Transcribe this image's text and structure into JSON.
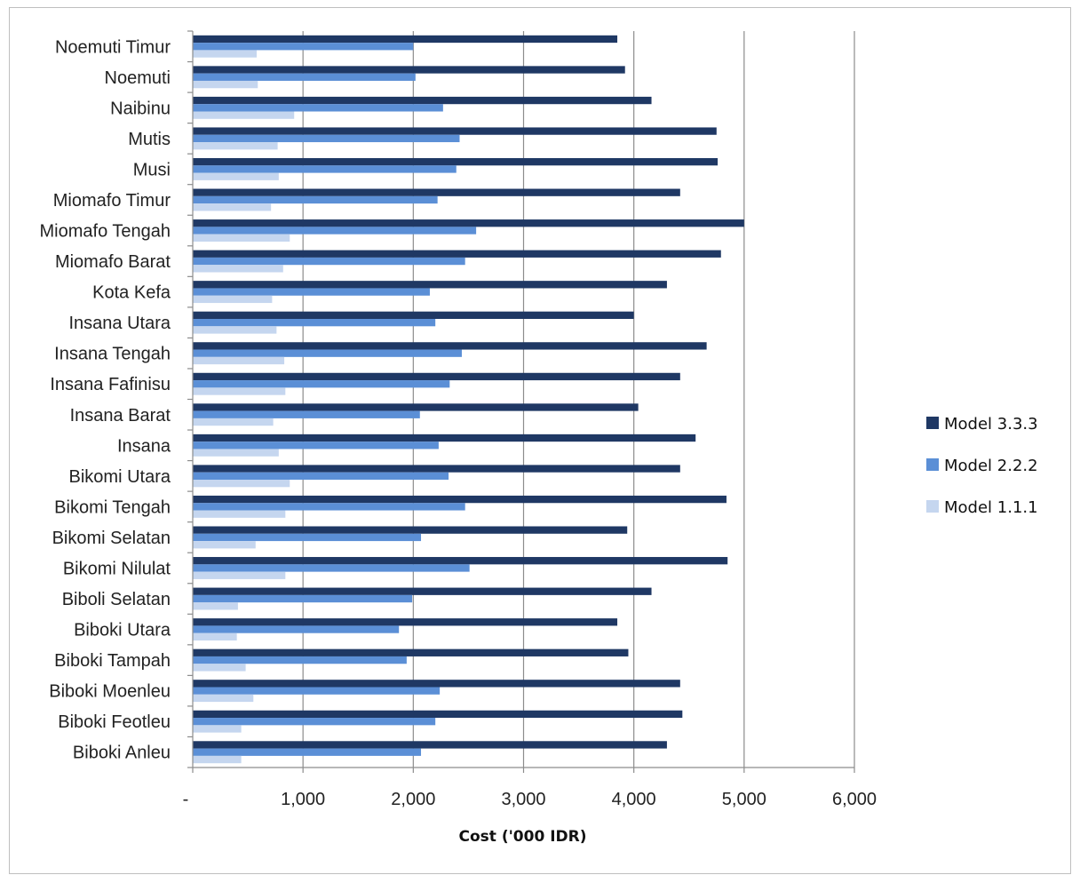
{
  "chart_data": {
    "type": "bar",
    "orientation": "horizontal",
    "categories": [
      "Noemuti Timur",
      "Noemuti",
      "Naibinu",
      "Mutis",
      "Musi",
      "Miomafo Timur",
      "Miomafo Tengah",
      "Miomafo Barat",
      "Kota Kefa",
      "Insana Utara",
      "Insana Tengah",
      "Insana Fafinisu",
      "Insana Barat",
      "Insana",
      "Bikomi Utara",
      "Bikomi Tengah",
      "Bikomi Selatan",
      "Bikomi Nilulat",
      "Biboli Selatan",
      "Biboki Utara",
      "Biboki Tampah",
      "Biboki Moenleu",
      "Biboki Feotleu",
      "Biboki Anleu"
    ],
    "series": [
      {
        "name": "Model 3.3.3",
        "color": "#1f3864",
        "values": [
          3850,
          3920,
          4160,
          4750,
          4760,
          4420,
          5000,
          4790,
          4300,
          4000,
          4660,
          4420,
          4040,
          4560,
          4420,
          4840,
          3940,
          4850,
          4160,
          3850,
          3950,
          4420,
          4440,
          4300
        ]
      },
      {
        "name": "Model 2.2.2",
        "color": "#5b8fd6",
        "values": [
          2000,
          2020,
          2270,
          2420,
          2390,
          2220,
          2570,
          2470,
          2150,
          2200,
          2440,
          2330,
          2060,
          2230,
          2320,
          2470,
          2070,
          2510,
          1990,
          1870,
          1940,
          2240,
          2200,
          2070
        ]
      },
      {
        "name": "Model 1.1.1",
        "color": "#c5d6ef",
        "values": [
          580,
          590,
          920,
          770,
          780,
          710,
          880,
          820,
          720,
          760,
          830,
          840,
          730,
          780,
          880,
          840,
          570,
          840,
          410,
          400,
          480,
          550,
          440,
          440
        ]
      }
    ],
    "xticks": [
      "-",
      "1,000",
      "2,000",
      "3,000",
      "4,000",
      "5,000",
      "6,000"
    ],
    "xlim": [
      0,
      6000
    ],
    "xlabel": "Cost ('000 IDR)",
    "ylabel": "",
    "title": "",
    "grid": "vertical",
    "legend": "right"
  }
}
